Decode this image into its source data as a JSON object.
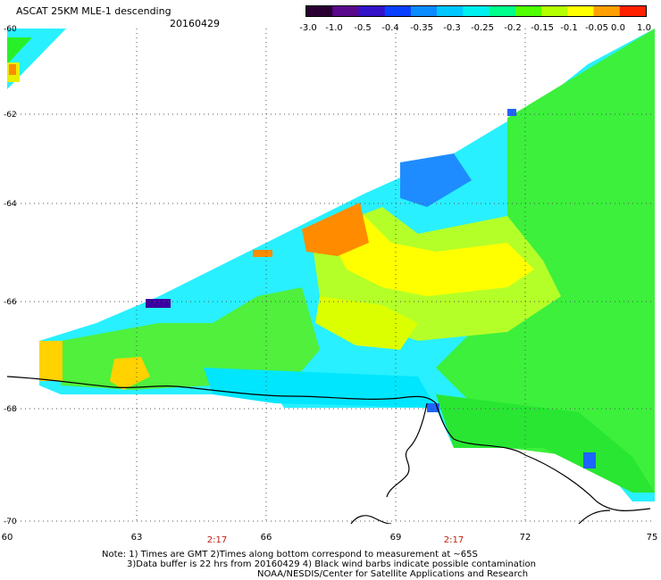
{
  "title": "ASCAT 25KM MLE-1 descending",
  "date": "20160429",
  "colorbar": {
    "ticks": [
      "-3.0",
      "-1.0",
      "-0.5",
      "-0.4",
      "-0.35",
      "-0.3",
      "-0.25",
      "-0.2",
      "-0.15",
      "-0.1",
      "-0.05",
      "0.0",
      "1.0"
    ],
    "colors": [
      "#2a0033",
      "#5a0a8c",
      "#3412c8",
      "#0a40ff",
      "#0a8cff",
      "#00c8ff",
      "#00f0f0",
      "#00ff8c",
      "#50ff00",
      "#b4ff00",
      "#ffff00",
      "#ffa000",
      "#ff2000"
    ]
  },
  "map": {
    "lat_labels": [
      "-60",
      "-62",
      "-64",
      "-66",
      "-68",
      "-70"
    ],
    "lon_labels": [
      "60",
      "63",
      "66",
      "69",
      "72",
      "75"
    ],
    "time_labels": [
      "2:17",
      "2:17"
    ],
    "colors": {
      "coast": "#000000",
      "grid": "#555555",
      "cyan": "#00ffff",
      "light_cyan": "#28f0ff",
      "green": "#28f028",
      "light_green": "#5aff46",
      "yellow_green": "#b4ff28",
      "yellow": "#ffff00",
      "orange": "#ff8c00",
      "blue": "#1e64ff",
      "dark_blue": "#3c00a0"
    }
  },
  "note": {
    "line1": "Note: 1) Times are GMT 2)Times along bottom correspond to measurement at ~65S",
    "line2": "3)Data buffer is 22 hrs from 20160429 4) Black wind barbs indicate possible contamination",
    "line3": "NOAA/NESDIS/Center for Satellite Applications and Research"
  }
}
